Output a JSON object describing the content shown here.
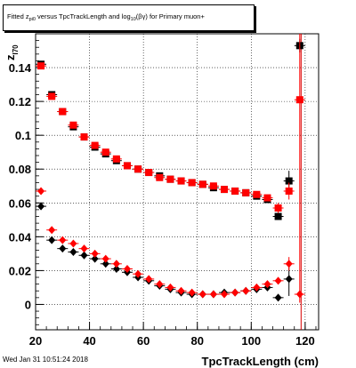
{
  "canvas": {
    "title_prefix": "Fitted  z",
    "title_sub1": "pi0",
    "title_middle": " versus TpcTrackLength and log",
    "title_sub2": "10",
    "title_suffix": "(βγ) for Primary muon+",
    "timestamp": "Wed Jan 31 10:51:24 2018"
  },
  "chart_data": {
    "type": "scatter",
    "xlabel": "TpcTrackLength (cm)",
    "ylabel_main": "z",
    "ylabel_sub": "I70",
    "xlim": [
      20,
      125
    ],
    "ylim": [
      -0.015,
      0.16
    ],
    "x_ticks": [
      20,
      40,
      60,
      80,
      100,
      120
    ],
    "y_ticks": [
      0,
      0.02,
      0.04,
      0.06,
      0.08,
      0.1,
      0.12,
      0.14
    ],
    "x_tick_labels": [
      "20",
      "40",
      "60",
      "80",
      "100",
      "120"
    ],
    "y_tick_labels": [
      "0",
      "0.02",
      "0.04",
      "0.06",
      "0.08",
      "0.1",
      "0.12",
      "0.14"
    ],
    "grid": true,
    "vertical_line_x": 118.5,
    "series": [
      {
        "marker": "square",
        "color": "#000000",
        "x": [
          22,
          26,
          30,
          34,
          38,
          42,
          46,
          50,
          54,
          58,
          62,
          66,
          70,
          74,
          78,
          82,
          86,
          90,
          94,
          98,
          102,
          106,
          110,
          114,
          118
        ],
        "y": [
          0.142,
          0.124,
          0.114,
          0.105,
          0.099,
          0.093,
          0.089,
          0.085,
          0.082,
          0.08,
          0.078,
          0.076,
          0.074,
          0.073,
          0.072,
          0.071,
          0.069,
          0.068,
          0.067,
          0.066,
          0.064,
          0.062,
          0.052,
          0.073,
          0.153
        ],
        "err": [
          0.002,
          0.0015,
          0.0012,
          0.001,
          0.001,
          0.001,
          0.001,
          0.001,
          0.001,
          0.001,
          0.001,
          0.001,
          0.001,
          0.001,
          0.001,
          0.001,
          0.001,
          0.001,
          0.001,
          0.001,
          0.001,
          0.0015,
          0.002,
          0.006,
          0.004
        ]
      },
      {
        "marker": "square",
        "color": "#ff0000",
        "x": [
          22,
          26,
          30,
          34,
          38,
          42,
          46,
          50,
          54,
          58,
          62,
          66,
          70,
          74,
          78,
          82,
          86,
          90,
          94,
          98,
          102,
          106,
          110,
          114,
          118
        ],
        "y": [
          0.141,
          0.123,
          0.114,
          0.106,
          0.099,
          0.094,
          0.09,
          0.086,
          0.082,
          0.08,
          0.078,
          0.075,
          0.074,
          0.073,
          0.072,
          0.071,
          0.07,
          0.068,
          0.067,
          0.066,
          0.065,
          0.063,
          0.057,
          0.067,
          0.121
        ],
        "err": [
          0.002,
          0.0015,
          0.0012,
          0.001,
          0.001,
          0.001,
          0.001,
          0.001,
          0.001,
          0.001,
          0.001,
          0.001,
          0.001,
          0.001,
          0.001,
          0.001,
          0.001,
          0.001,
          0.001,
          0.001,
          0.001,
          0.0015,
          0.003,
          0.005,
          0.12
        ]
      },
      {
        "marker": "diamond",
        "color": "#000000",
        "x": [
          22,
          26,
          30,
          34,
          38,
          42,
          46,
          50,
          54,
          58,
          62,
          66,
          70,
          74,
          78,
          82,
          86,
          90,
          94,
          98,
          102,
          106,
          110,
          114
        ],
        "y": [
          0.058,
          0.038,
          0.033,
          0.031,
          0.029,
          0.027,
          0.024,
          0.021,
          0.019,
          0.016,
          0.014,
          0.011,
          0.009,
          0.007,
          0.006,
          0.006,
          0.006,
          0.007,
          0.007,
          0.008,
          0.009,
          0.01,
          0.004,
          0.015
        ],
        "err": [
          0.001,
          0.001,
          0.001,
          0.001,
          0.001,
          0.001,
          0.001,
          0.001,
          0.001,
          0.001,
          0.001,
          0.001,
          0.001,
          0.001,
          0.001,
          0.001,
          0.001,
          0.001,
          0.001,
          0.001,
          0.001,
          0.001,
          0.002,
          0.01
        ]
      },
      {
        "marker": "diamond",
        "color": "#ff0000",
        "x": [
          22,
          26,
          30,
          34,
          38,
          42,
          46,
          50,
          54,
          58,
          62,
          66,
          70,
          74,
          78,
          82,
          86,
          90,
          94,
          98,
          102,
          106,
          110,
          114,
          118
        ],
        "y": [
          0.067,
          0.044,
          0.038,
          0.036,
          0.033,
          0.03,
          0.027,
          0.024,
          0.021,
          0.018,
          0.015,
          0.012,
          0.01,
          0.008,
          0.007,
          0.006,
          0.006,
          0.006,
          0.007,
          0.008,
          0.01,
          0.012,
          0.014,
          0.024,
          0.006
        ],
        "err": [
          0.001,
          0.001,
          0.001,
          0.001,
          0.001,
          0.001,
          0.001,
          0.001,
          0.001,
          0.001,
          0.001,
          0.001,
          0.001,
          0.001,
          0.001,
          0.001,
          0.001,
          0.001,
          0.001,
          0.001,
          0.001,
          0.001,
          0.002,
          0.004,
          0.002
        ]
      }
    ]
  }
}
